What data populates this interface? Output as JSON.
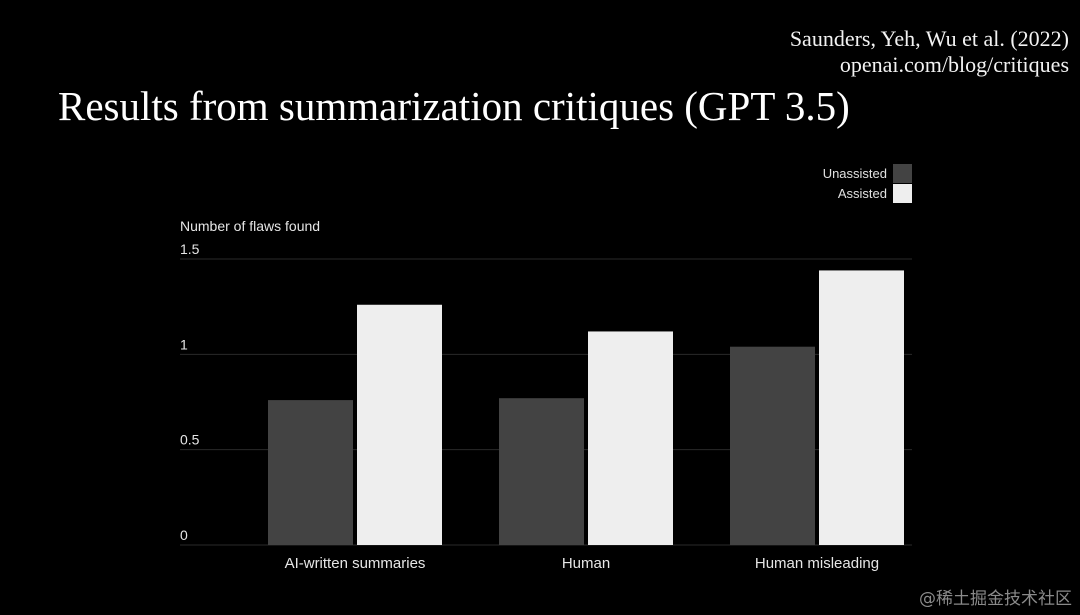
{
  "citation": {
    "line1": "Saunders, Yeh, Wu et al. (2022)",
    "line2": "openai.com/blog/critiques"
  },
  "title": "Results from summarization critiques (GPT 3.5)",
  "watermark": "@稀土掘金技术社区",
  "colors": {
    "background": "#000000",
    "unassisted": "#434343",
    "assisted": "#eeeeee",
    "gridline": "#2a2a2a",
    "text": "#e6e6e6"
  },
  "chart_data": {
    "type": "bar",
    "title": "",
    "ylabel": "Number of flaws found",
    "xlabel": "",
    "categories": [
      "AI-written summaries",
      "Human",
      "Human misleading"
    ],
    "series": [
      {
        "name": "Unassisted",
        "values": [
          0.76,
          0.77,
          1.04
        ]
      },
      {
        "name": "Assisted",
        "values": [
          1.26,
          1.12,
          1.44
        ]
      }
    ],
    "ylim": [
      0,
      1.5
    ],
    "yticks": [
      {
        "value": 0,
        "label": "0"
      },
      {
        "value": 0.5,
        "label": "0.5"
      },
      {
        "value": 1,
        "label": "1"
      },
      {
        "value": 1.5,
        "label": "1.5"
      }
    ],
    "grid": true,
    "legend_position": "top-right"
  }
}
